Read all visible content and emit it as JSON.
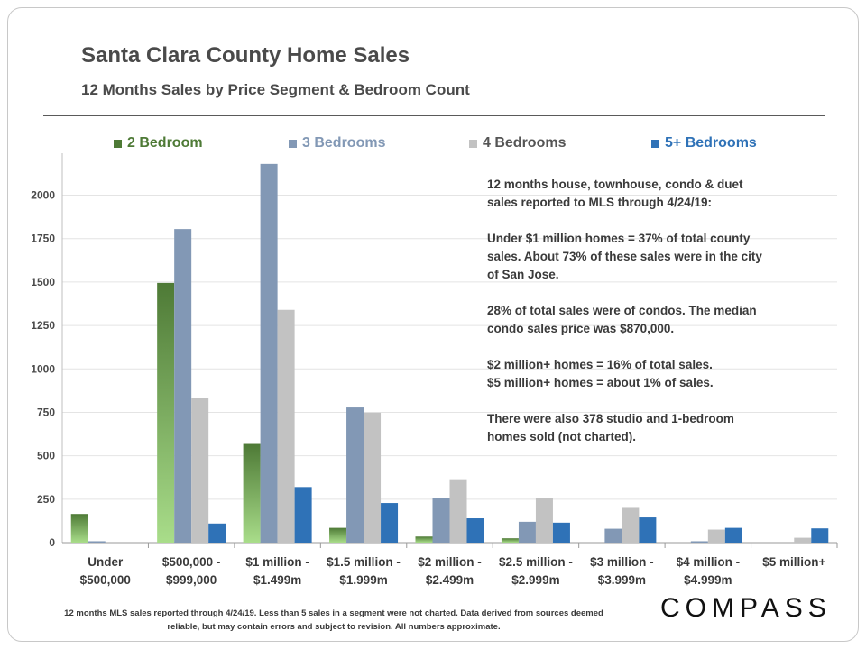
{
  "title": "Santa Clara County Home Sales",
  "subtitle": "12 Months Sales by Price Segment & Bedroom Count",
  "colors": {
    "bed2_top": "#4e7a36",
    "bed2_bottom": "#a9dd8a",
    "bed3": "#8298b5",
    "bed4": "#c2c2c2",
    "bed5": "#2f72b7",
    "text": "#4a4a4a"
  },
  "chart_data": {
    "type": "bar",
    "categories": [
      [
        "Under",
        "$500,000"
      ],
      [
        "$500,000 -",
        "$999,000"
      ],
      [
        "$1 million -",
        "$1.499m"
      ],
      [
        "$1.5 million -",
        "$1.999m"
      ],
      [
        "$2 million -",
        "$2.499m"
      ],
      [
        "$2.5 million -",
        "$2.999m"
      ],
      [
        "$3 million -",
        "$3.999m"
      ],
      [
        "$4 million -",
        "$4.999m"
      ],
      [
        "$5 million+"
      ]
    ],
    "series": [
      {
        "name": "2 Bedroom",
        "values": [
          165,
          1495,
          568,
          85,
          35,
          25,
          null,
          null,
          null
        ]
      },
      {
        "name": "3 Bedrooms",
        "values": [
          8,
          1805,
          2180,
          778,
          258,
          120,
          80,
          8,
          null
        ]
      },
      {
        "name": "4 Bedrooms",
        "values": [
          null,
          833,
          1340,
          748,
          365,
          258,
          200,
          75,
          28
        ]
      },
      {
        "name": "5+ Bedrooms",
        "values": [
          null,
          110,
          320,
          228,
          140,
          115,
          145,
          85,
          82
        ]
      }
    ],
    "yticks": [
      0,
      250,
      500,
      750,
      1000,
      1250,
      1500,
      1750,
      2000
    ],
    "ylim": [
      0,
      2200
    ]
  },
  "notes": {
    "p1": "12 months house, townhouse, condo & duet sales reported to MLS through 4/24/19:",
    "p2": "Under $1 million homes = 37% of total county sales. About 73% of these sales were in the city of San Jose.",
    "p3": "28% of total sales were of condos. The median condo sales price was $870,000.",
    "p4a": "$2 million+ homes = 16% of total sales.",
    "p4b": "$5 million+ homes = about 1% of sales.",
    "p5": "There were also 378 studio and 1-bedroom homes sold (not charted)."
  },
  "footer": "12 months MLS sales reported through 4/24/19. Less than 5 sales in a segment were not charted. Data derived from sources deemed reliable, but may contain errors and subject to revision. All numbers approximate.",
  "logo": "COMPASS"
}
